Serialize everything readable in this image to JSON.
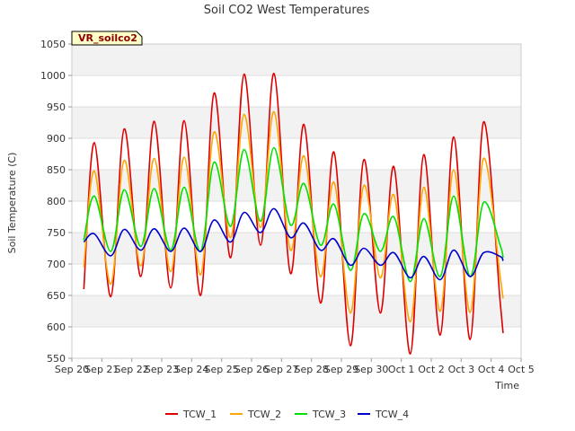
{
  "chart_data": {
    "type": "line",
    "title": "Soil CO2 West Temperatures",
    "xlabel": "Time",
    "ylabel": "Soil Temperature (C)",
    "station_label": "VR_soilco2",
    "ylim": [
      550,
      1050
    ],
    "yticks": [
      550,
      600,
      650,
      700,
      750,
      800,
      850,
      900,
      950,
      1000,
      1050
    ],
    "xlim": [
      0,
      15
    ],
    "xtick_labels": [
      "Sep 20",
      "Sep 21",
      "Sep 22",
      "Sep 23",
      "Sep 24",
      "Sep 25",
      "Sep 26",
      "Sep 27",
      "Sep 28",
      "Sep 29",
      "Sep 30",
      "Oct 1",
      "Oct 2",
      "Oct 3",
      "Oct 4",
      "Oct 5"
    ],
    "x": [
      0.4,
      0.75,
      1.3,
      1.75,
      2.3,
      2.75,
      3.3,
      3.75,
      4.3,
      4.75,
      5.3,
      5.75,
      6.3,
      6.75,
      7.3,
      7.75,
      8.3,
      8.75,
      9.3,
      9.75,
      10.3,
      10.75,
      11.3,
      11.75,
      12.3,
      12.75,
      13.3,
      13.75,
      14.3,
      14.4
    ],
    "series": [
      {
        "name": "TCW_1",
        "color": "#dd0000",
        "values": [
          660,
          893,
          648,
          915,
          680,
          927,
          662,
          928,
          650,
          972,
          710,
          1002,
          730,
          1003,
          685,
          922,
          638,
          878,
          570,
          866,
          622,
          855,
          557,
          874,
          587,
          902,
          580,
          926,
          640,
          590
        ]
      },
      {
        "name": "TCW_2",
        "color": "#ffa500",
        "values": [
          695,
          848,
          668,
          865,
          697,
          868,
          688,
          870,
          683,
          910,
          742,
          938,
          758,
          942,
          722,
          872,
          680,
          830,
          622,
          825,
          678,
          810,
          608,
          822,
          625,
          850,
          623,
          868,
          680,
          645
        ]
      },
      {
        "name": "TCW_3",
        "color": "#00e000",
        "values": [
          738,
          808,
          720,
          818,
          728,
          820,
          722,
          822,
          720,
          862,
          760,
          882,
          768,
          885,
          762,
          828,
          730,
          795,
          690,
          780,
          720,
          775,
          672,
          772,
          680,
          808,
          680,
          798,
          730,
          710
        ]
      },
      {
        "name": "TCW_4",
        "color": "#0000cc",
        "values": [
          735,
          748,
          713,
          755,
          722,
          756,
          720,
          757,
          720,
          770,
          735,
          782,
          750,
          788,
          742,
          765,
          722,
          740,
          698,
          725,
          698,
          718,
          678,
          712,
          675,
          722,
          680,
          718,
          712,
          705
        ]
      }
    ],
    "legend_position": "bottom-center"
  }
}
